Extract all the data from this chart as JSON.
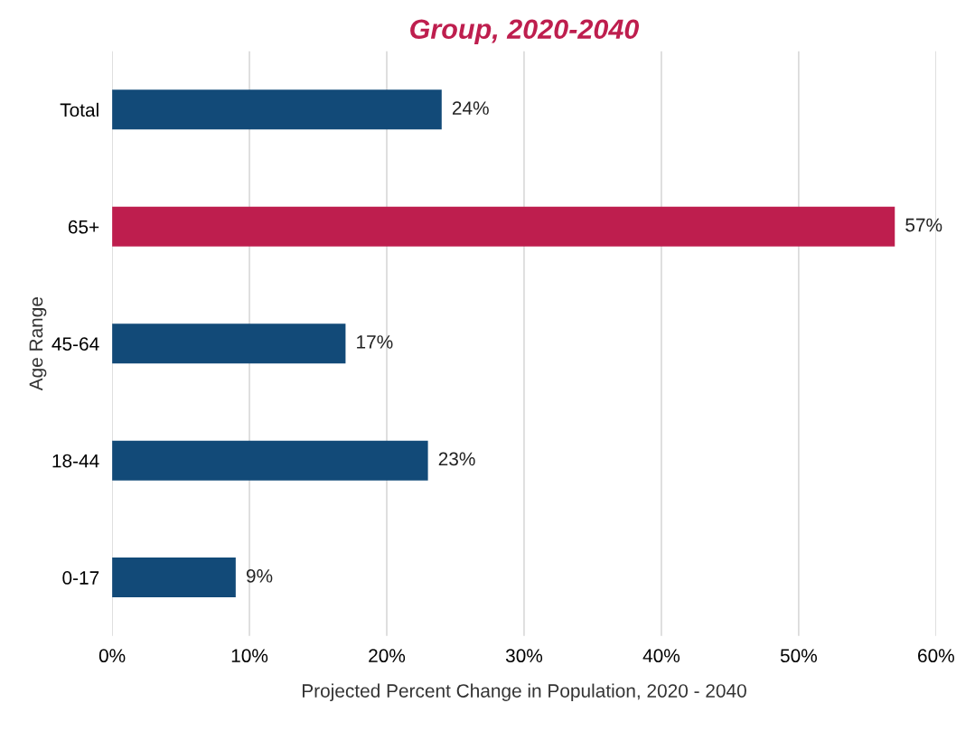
{
  "chart_data": {
    "type": "bar",
    "orientation": "horizontal",
    "title": "Group, 2020-2040",
    "xlabel": "Projected Percent Change in Population, 2020 - 2040",
    "ylabel": "Age Range",
    "categories": [
      "Total",
      "65+",
      "45-64",
      "18-44",
      "0-17"
    ],
    "values": [
      24,
      57,
      17,
      23,
      9
    ],
    "colors": [
      "#124a78",
      "#be1e4e",
      "#124a78",
      "#124a78",
      "#124a78"
    ],
    "value_labels": [
      "24%",
      "57%",
      "17%",
      "23%",
      "9%"
    ],
    "xlim": [
      0,
      60
    ],
    "xticks": [
      {
        "value": 0,
        "label": "0%"
      },
      {
        "value": 10,
        "label": "10%"
      },
      {
        "value": 20,
        "label": "20%"
      },
      {
        "value": 30,
        "label": "30%"
      },
      {
        "value": 40,
        "label": "40%"
      },
      {
        "value": 50,
        "label": "50%"
      },
      {
        "value": 60,
        "label": "60%"
      }
    ],
    "grid": "x",
    "legend": false
  }
}
